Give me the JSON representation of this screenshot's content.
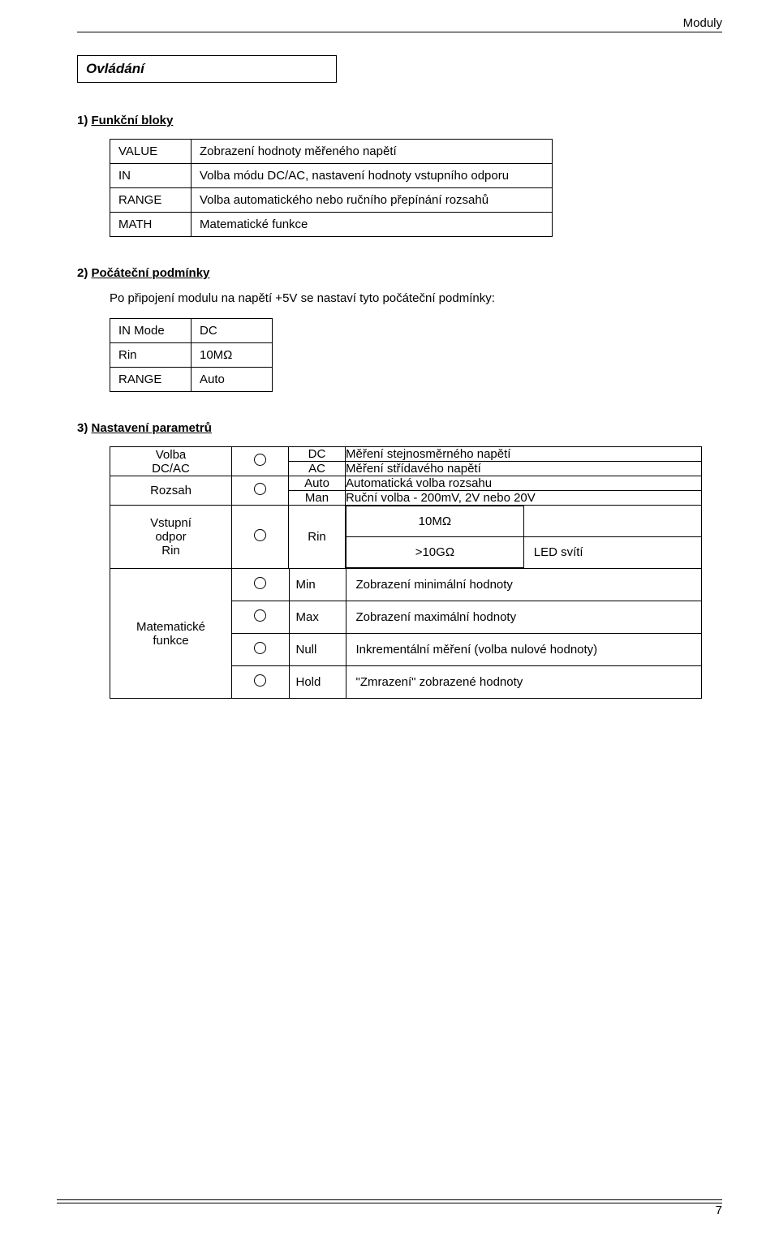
{
  "header_right": "Moduly",
  "section_title": "Ovládání",
  "sec1": {
    "title_num": "1) ",
    "title_text": "Funkční bloky"
  },
  "table1": {
    "rows": [
      {
        "c1": "VALUE",
        "c2": "Zobrazení hodnoty měřeného napětí"
      },
      {
        "c1": "IN",
        "c2": "Volba módu DC/AC, nastavení hodnoty vstupního odporu"
      },
      {
        "c1": "RANGE",
        "c2": "Volba automatického nebo ručního přepínání rozsahů"
      },
      {
        "c1": "MATH",
        "c2": "Matematické funkce"
      }
    ]
  },
  "sec2": {
    "title_num": "2) ",
    "title_text": "Počáteční podmínky",
    "note": "Po připojení modulu na napětí +5V se nastaví tyto počáteční podmínky:"
  },
  "table2": {
    "rows": [
      {
        "c1": "IN Mode",
        "c2": "DC"
      },
      {
        "c1": "Rin",
        "c2": "10MΩ"
      },
      {
        "c1": "RANGE",
        "c2": "Auto"
      }
    ]
  },
  "sec3": {
    "title_num": "3) ",
    "title_text": "Nastavení parametrů"
  },
  "diagram": {
    "row1": {
      "label_l1": "Volba",
      "label_l2": "DC/AC",
      "opts": [
        {
          "sel": "DC",
          "desc": "Měření stejnosměrného napětí"
        },
        {
          "sel": "AC",
          "desc": "Měření střídavého napětí"
        }
      ]
    },
    "row2": {
      "label": "Rozsah",
      "opts": [
        {
          "sel": "Auto",
          "desc": "Automatická volba rozsahu"
        },
        {
          "sel": "Man",
          "desc": "Ruční volba -  200mV, 2V nebo 20V"
        }
      ]
    },
    "row3": {
      "label_l1": "Vstupní",
      "label_l2": "odpor",
      "label_l3": "Rin",
      "sel": "Rin",
      "v1": "10MΩ",
      "v2": ">10GΩ",
      "v2_led": "LED svítí"
    },
    "row4": {
      "label_l1": "Matematické",
      "label_l2": "funkce",
      "opts": [
        {
          "sel": "Min",
          "desc": "Zobrazení minimální hodnoty"
        },
        {
          "sel": "Max",
          "desc": "Zobrazení maximální hodnoty"
        },
        {
          "sel": "Null",
          "desc": "Inkrementální měření (volba nulové hodnoty)"
        },
        {
          "sel": "Hold",
          "desc": "\"Zmrazení\" zobrazené hodnoty"
        }
      ]
    }
  },
  "page_number": "7"
}
